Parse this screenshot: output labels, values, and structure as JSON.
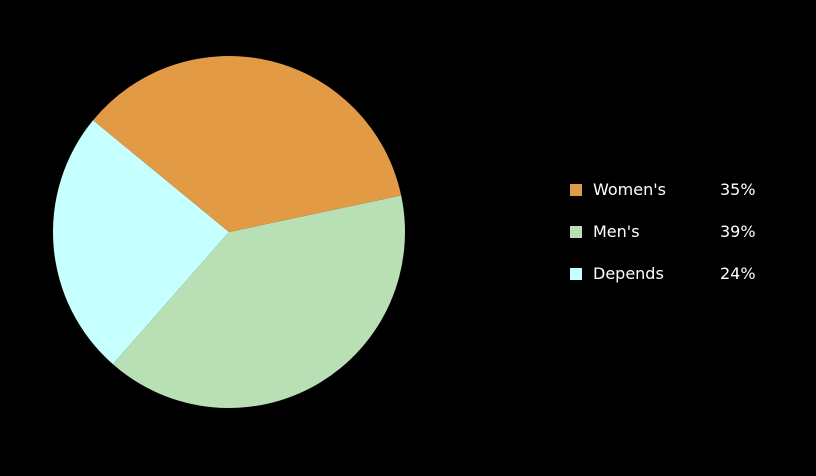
{
  "chart_data": {
    "type": "pie",
    "slices": [
      {
        "label": "Women's",
        "value": 35,
        "display": "35%",
        "color": "#e39a45"
      },
      {
        "label": "Men's",
        "value": 39,
        "display": "39%",
        "color": "#b9e0b5"
      },
      {
        "label": "Depends",
        "value": 24,
        "display": "24%",
        "color": "#c5fffe"
      }
    ],
    "legend_position": "right"
  }
}
